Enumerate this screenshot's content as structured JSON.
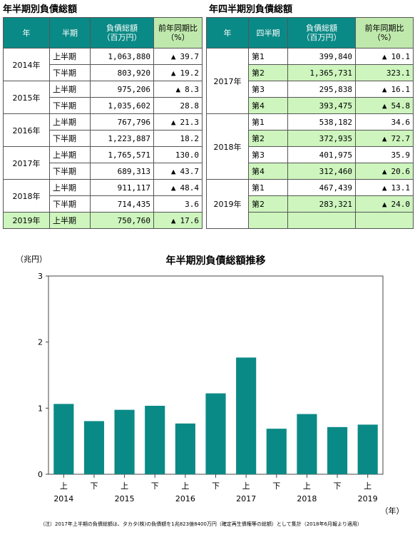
{
  "left_table": {
    "title": "年半期別負債総額",
    "headers": {
      "year": "年",
      "half": "半期",
      "amount_1": "負債総額",
      "amount_2": "（百万円）",
      "pct_1": "前年同期比",
      "pct_2": "（%）"
    },
    "rows": [
      {
        "year": "2014年",
        "half": "上半期",
        "amount": "1,063,880",
        "pct": "39.7",
        "down": true,
        "highlight": false
      },
      {
        "year": "",
        "half": "下半期",
        "amount": "803,920",
        "pct": "19.2",
        "down": true,
        "highlight": false
      },
      {
        "year": "2015年",
        "half": "上半期",
        "amount": "975,206",
        "pct": "8.3",
        "down": true,
        "highlight": false
      },
      {
        "year": "",
        "half": "下半期",
        "amount": "1,035,602",
        "pct": "28.8",
        "down": false,
        "highlight": false
      },
      {
        "year": "2016年",
        "half": "上半期",
        "amount": "767,796",
        "pct": "21.3",
        "down": true,
        "highlight": false
      },
      {
        "year": "",
        "half": "下半期",
        "amount": "1,223,887",
        "pct": "18.2",
        "down": false,
        "highlight": false
      },
      {
        "year": "2017年",
        "half": "上半期",
        "amount": "1,765,571",
        "pct": "130.0",
        "down": false,
        "highlight": false
      },
      {
        "year": "",
        "half": "下半期",
        "amount": "689,313",
        "pct": "43.7",
        "down": true,
        "highlight": false
      },
      {
        "year": "2018年",
        "half": "上半期",
        "amount": "911,117",
        "pct": "48.4",
        "down": true,
        "highlight": false
      },
      {
        "year": "",
        "half": "下半期",
        "amount": "714,435",
        "pct": "3.6",
        "down": false,
        "highlight": false
      },
      {
        "year": "2019年",
        "half": "上半期",
        "amount": "750,760",
        "pct": "17.6",
        "down": true,
        "highlight": true
      }
    ]
  },
  "right_table": {
    "title": "年四半期別負債総額",
    "headers": {
      "year": "年",
      "quarter": "四半期",
      "amount_1": "負債総額",
      "amount_2": "（百万円）",
      "pct_1": "前年同期比",
      "pct_2": "（%）"
    },
    "rows": [
      {
        "year": "2017年",
        "q": "第1",
        "amount": "399,840",
        "pct": "10.1",
        "down": true,
        "highlight": false
      },
      {
        "year": "",
        "q": "第2",
        "amount": "1,365,731",
        "pct": "323.1",
        "down": false,
        "highlight": true
      },
      {
        "year": "",
        "q": "第3",
        "amount": "295,838",
        "pct": "16.1",
        "down": true,
        "highlight": false
      },
      {
        "year": "",
        "q": "第4",
        "amount": "393,475",
        "pct": "54.8",
        "down": true,
        "highlight": true
      },
      {
        "year": "2018年",
        "q": "第1",
        "amount": "538,182",
        "pct": "34.6",
        "down": false,
        "highlight": false
      },
      {
        "year": "",
        "q": "第2",
        "amount": "372,935",
        "pct": "72.7",
        "down": true,
        "highlight": true
      },
      {
        "year": "",
        "q": "第3",
        "amount": "401,975",
        "pct": "35.9",
        "down": false,
        "highlight": false
      },
      {
        "year": "",
        "q": "第4",
        "amount": "312,460",
        "pct": "20.6",
        "down": true,
        "highlight": true
      },
      {
        "year": "2019年",
        "q": "第1",
        "amount": "467,439",
        "pct": "13.1",
        "down": true,
        "highlight": false
      },
      {
        "year": "",
        "q": "第2",
        "amount": "283,321",
        "pct": "24.0",
        "down": true,
        "highlight": true
      },
      {
        "year": "",
        "q": "",
        "amount": "",
        "pct": "",
        "down": false,
        "highlight": true
      }
    ]
  },
  "down_marker": "▲",
  "colors": {
    "header_teal": "#0a8a86",
    "header_green": "#bfe9ac",
    "row_green": "#cdf5bd",
    "bar": "#0a8a86"
  },
  "chart_data": {
    "type": "bar",
    "title": "年半期別負債総額推移",
    "ylabel": "（兆円）",
    "xlabel": "（年）",
    "ylim": [
      0,
      3
    ],
    "yticks": [
      0,
      1,
      2,
      3
    ],
    "grid": false,
    "categories": [
      "上",
      "下",
      "上",
      "下",
      "上",
      "下",
      "上",
      "下",
      "上",
      "下",
      "上"
    ],
    "year_labels": [
      "2014",
      "",
      "2015",
      "",
      "2016",
      "",
      "2017",
      "",
      "2018",
      "",
      "2019"
    ],
    "values": [
      1.064,
      0.804,
      0.975,
      1.036,
      0.768,
      1.224,
      1.766,
      0.689,
      0.911,
      0.714,
      0.751
    ]
  },
  "note": "（注）2017年上半期の負債総額は、タカタ(株)の負債額を1兆823億8400万円（確定再生債権等の総額）として集計（2018年6月報より適用）"
}
